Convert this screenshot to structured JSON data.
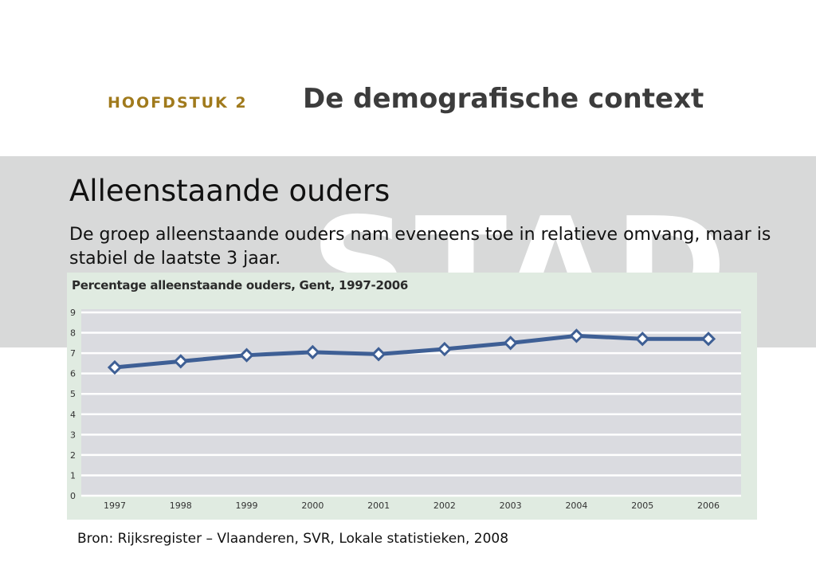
{
  "header": {
    "chapter_label": "HOOFDSTUK 2",
    "chapter_title": "De demografische context"
  },
  "watermark": "STAD",
  "slide": {
    "title": "Alleenstaande ouders",
    "body": "De groep alleenstaande ouders nam eveneens toe in relatieve omvang, maar is stabiel de laatste 3 jaar."
  },
  "source": "Bron: Rijksregister – Vlaanderen, SVR, Lokale statistieken, 2008",
  "colors": {
    "line": "#3e5f95",
    "plot_background": "#dadbe0",
    "panel_background": "#e0ebe1",
    "accent_gold": "#a07a1c"
  },
  "chart_data": {
    "type": "line",
    "title": "Percentage alleenstaande ouders, Gent, 1997-2006",
    "categories": [
      "1997",
      "1998",
      "1999",
      "2000",
      "2001",
      "2002",
      "2003",
      "2004",
      "2005",
      "2006"
    ],
    "values": [
      6.3,
      6.6,
      6.9,
      7.05,
      6.95,
      7.2,
      7.5,
      7.85,
      7.7,
      7.7
    ],
    "yticks": [
      "0",
      "1",
      "2",
      "3",
      "4",
      "5",
      "6",
      "7",
      "8",
      "9"
    ],
    "ylim": [
      0,
      9
    ],
    "grid": true,
    "marker": "diamond"
  }
}
